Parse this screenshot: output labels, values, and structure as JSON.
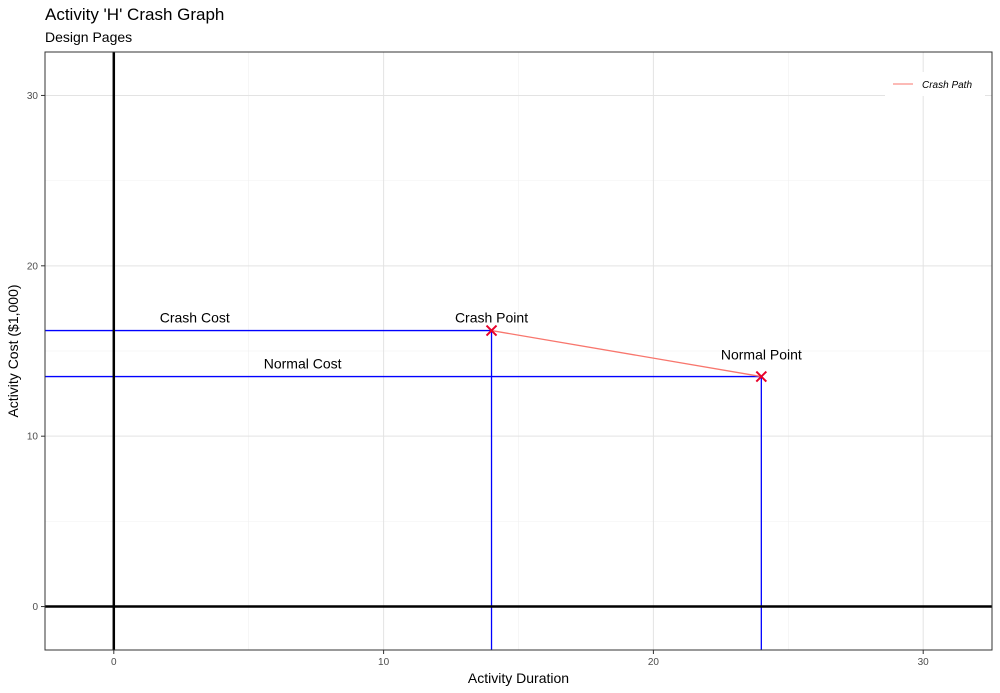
{
  "chart_data": {
    "type": "line",
    "title": "Activity 'H' Crash Graph",
    "subtitle": "Design Pages",
    "xlabel": "Activity Duration",
    "ylabel": "Activity Cost ($1,000)",
    "xlim": [
      -2.55,
      32.55
    ],
    "ylim": [
      -2.55,
      32.55
    ],
    "x_ticks": [
      0,
      10,
      20,
      30
    ],
    "y_ticks": [
      0,
      10,
      20,
      30
    ],
    "grid": true,
    "legend_position": "top-right",
    "series": [
      {
        "name": "Crash Path",
        "color": "#F8766D",
        "points": [
          [
            14,
            16.2
          ],
          [
            24,
            13.5
          ]
        ]
      }
    ],
    "reference_lines": [
      {
        "from": [
          -2.55,
          16.2
        ],
        "to": [
          14,
          16.2
        ],
        "color": "#0000FF"
      },
      {
        "from": [
          -2.55,
          13.5
        ],
        "to": [
          24,
          13.5
        ],
        "color": "#0000FF"
      },
      {
        "from": [
          14,
          -2.55
        ],
        "to": [
          14,
          16.2
        ],
        "color": "#0000FF"
      },
      {
        "from": [
          24,
          -2.55
        ],
        "to": [
          24,
          13.5
        ],
        "color": "#0000FF"
      }
    ],
    "axis_lines": {
      "x0": true,
      "y0": true,
      "color": "#000000"
    },
    "points": [
      {
        "name": "crash-point-marker",
        "x": 14,
        "y": 16.2,
        "color": "#E8002A"
      },
      {
        "name": "normal-point-marker",
        "x": 24,
        "y": 13.5,
        "color": "#E8002A"
      }
    ],
    "annotations": [
      {
        "name": "crash-cost-label",
        "text": "Crash Cost",
        "x": 3,
        "y": 16.2
      },
      {
        "name": "normal-cost-label",
        "text": "Normal Cost",
        "x": 7,
        "y": 13.5
      },
      {
        "name": "crash-point-label",
        "text": "Crash Point",
        "x": 14,
        "y": 16.2
      },
      {
        "name": "normal-point-label",
        "text": "Normal Point",
        "x": 24,
        "y": 13.5
      }
    ]
  }
}
